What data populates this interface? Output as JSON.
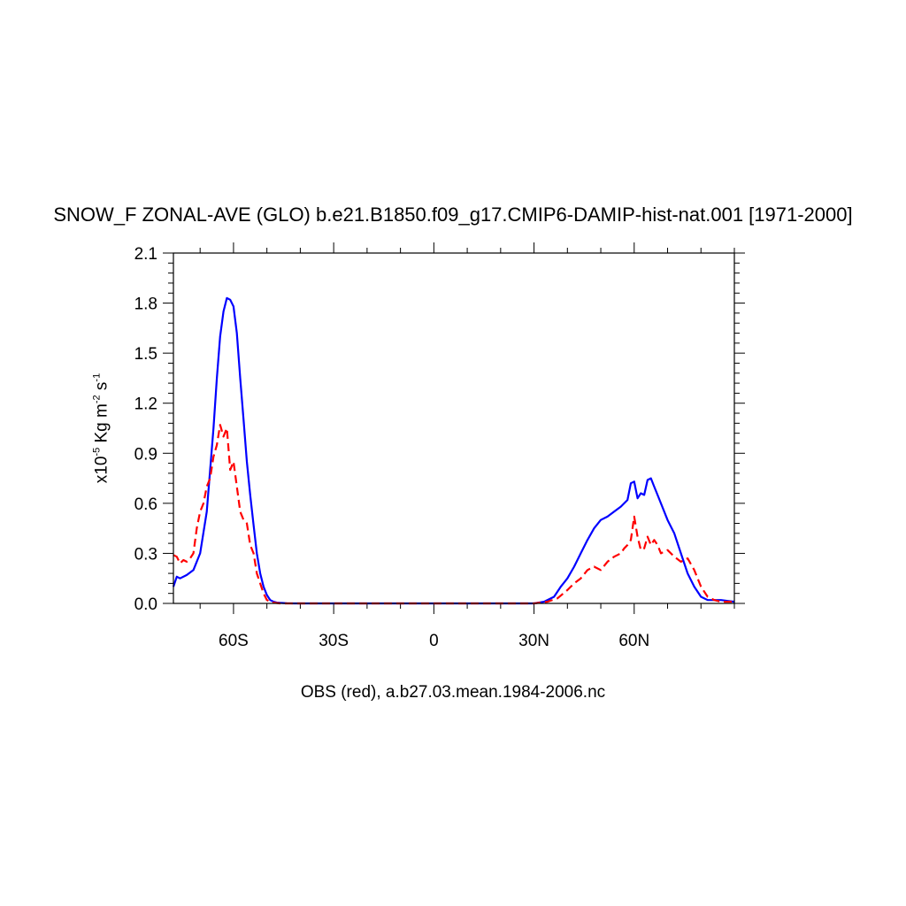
{
  "chart_data": {
    "type": "line",
    "title": "SNOW_F ZONAL-AVE (GLO) b.e21.B1850.f09_g17.CMIP6-DAMIP-hist-nat.001 [1971-2000]",
    "xlabel": "OBS (red), a.b27.03.mean.1984-2006.nc",
    "ylabel": {
      "prefix": "x10",
      "exp1": "-5",
      "unit_a": " Kg m",
      "exp2": "-2",
      "unit_b": " s",
      "exp3": "-1"
    },
    "xlim": [
      -78,
      90
    ],
    "ylim": [
      0,
      2.1
    ],
    "x_ticks": [
      {
        "value": -60,
        "label": "60S"
      },
      {
        "value": -30,
        "label": "30S"
      },
      {
        "value": 0,
        "label": "0"
      },
      {
        "value": 30,
        "label": "30N"
      },
      {
        "value": 60,
        "label": "60N"
      }
    ],
    "y_ticks": [
      {
        "value": 0.0,
        "label": "0.0"
      },
      {
        "value": 0.3,
        "label": "0.3"
      },
      {
        "value": 0.6,
        "label": "0.6"
      },
      {
        "value": 0.9,
        "label": "0.9"
      },
      {
        "value": 1.2,
        "label": "1.2"
      },
      {
        "value": 1.5,
        "label": "1.5"
      },
      {
        "value": 1.8,
        "label": "1.8"
      },
      {
        "value": 2.1,
        "label": "2.1"
      }
    ],
    "grid": false,
    "series": [
      {
        "color": "#0000ff",
        "dash": "solid",
        "x": [
          -78,
          -77,
          -76,
          -74,
          -72,
          -70,
          -68,
          -67,
          -66,
          -65,
          -64,
          -63,
          -62,
          -61,
          -60,
          -59,
          -58,
          -57,
          -56,
          -55,
          -54,
          -53,
          -52,
          -51,
          -50,
          -49,
          -48,
          -47,
          -46,
          -45,
          -44,
          -42,
          -40,
          -30,
          -20,
          -10,
          0,
          10,
          20,
          30,
          33,
          36,
          38,
          40,
          42,
          44,
          46,
          48,
          50,
          52,
          54,
          56,
          58,
          59,
          60,
          61,
          62,
          63,
          64,
          65,
          66,
          67,
          68,
          70,
          72,
          74,
          76,
          78,
          80,
          82,
          84,
          86,
          88,
          90
        ],
        "y": [
          0.1,
          0.16,
          0.15,
          0.17,
          0.2,
          0.3,
          0.55,
          0.8,
          1.05,
          1.35,
          1.6,
          1.75,
          1.83,
          1.82,
          1.78,
          1.62,
          1.35,
          1.1,
          0.85,
          0.65,
          0.47,
          0.3,
          0.18,
          0.1,
          0.05,
          0.02,
          0.01,
          0.005,
          0.003,
          0.002,
          0.001,
          0.0,
          0.0,
          0.0,
          0.0,
          0.0,
          0.0,
          0.0,
          0.0,
          0.0,
          0.01,
          0.04,
          0.1,
          0.15,
          0.22,
          0.3,
          0.38,
          0.45,
          0.5,
          0.52,
          0.55,
          0.58,
          0.62,
          0.72,
          0.73,
          0.63,
          0.66,
          0.65,
          0.74,
          0.75,
          0.7,
          0.65,
          0.6,
          0.5,
          0.42,
          0.3,
          0.18,
          0.1,
          0.04,
          0.02,
          0.02,
          0.02,
          0.015,
          0.01
        ]
      },
      {
        "color": "#ff0000",
        "dash": "dashed",
        "x": [
          -78,
          -77,
          -76,
          -75,
          -74,
          -73,
          -72,
          -71,
          -70,
          -69,
          -68,
          -67,
          -66,
          -65,
          -64,
          -63,
          -62,
          -61,
          -60,
          -59,
          -58,
          -57,
          -56,
          -55,
          -54,
          -53,
          -52,
          -51,
          -50,
          -49,
          -48,
          -46,
          -44,
          -40,
          -30,
          -20,
          -10,
          0,
          10,
          20,
          30,
          34,
          37,
          40,
          42,
          44,
          46,
          48,
          50,
          52,
          54,
          56,
          57,
          58,
          59,
          60,
          61,
          62,
          63,
          64,
          65,
          66,
          67,
          68,
          70,
          72,
          74,
          76,
          78,
          80,
          82,
          84,
          86,
          88,
          90
        ],
        "y": [
          0.29,
          0.28,
          0.24,
          0.26,
          0.25,
          0.27,
          0.3,
          0.45,
          0.55,
          0.6,
          0.7,
          0.75,
          0.88,
          0.95,
          1.07,
          1.0,
          1.05,
          0.8,
          0.85,
          0.7,
          0.55,
          0.5,
          0.48,
          0.35,
          0.3,
          0.18,
          0.12,
          0.06,
          0.02,
          0.01,
          0.005,
          0.0,
          0.0,
          0.0,
          0.0,
          0.0,
          0.0,
          0.0,
          0.0,
          0.0,
          0.0,
          0.01,
          0.03,
          0.08,
          0.12,
          0.15,
          0.2,
          0.22,
          0.2,
          0.25,
          0.28,
          0.3,
          0.33,
          0.35,
          0.38,
          0.52,
          0.4,
          0.32,
          0.33,
          0.4,
          0.35,
          0.38,
          0.35,
          0.3,
          0.32,
          0.28,
          0.25,
          0.27,
          0.2,
          0.1,
          0.04,
          0.02,
          0.01,
          0.01,
          0.01
        ]
      }
    ]
  }
}
